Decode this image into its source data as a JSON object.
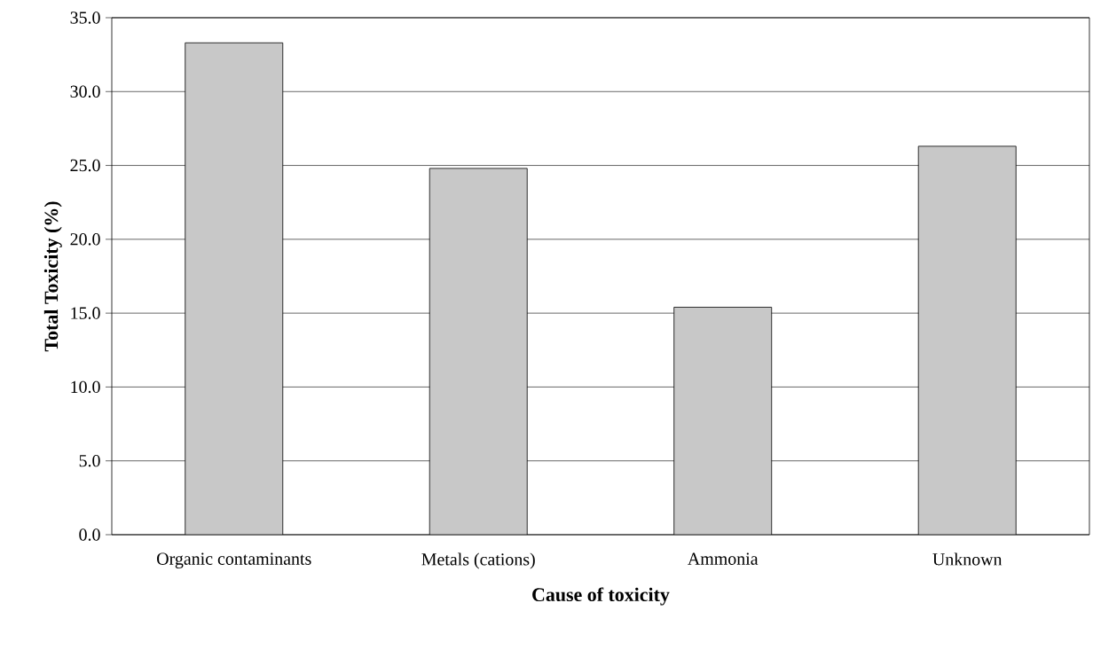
{
  "chart_data": {
    "type": "bar",
    "xlabel": "Cause of toxicity",
    "ylabel": "Total Toxicity (%)",
    "categories": [
      "Organic contaminants",
      "Metals (cations)",
      "Ammonia",
      "Unknown"
    ],
    "values": [
      33.3,
      24.8,
      15.4,
      26.3
    ],
    "color": "#c8c8c8",
    "ylim": [
      0,
      35
    ],
    "yticks": [
      {
        "value": 0,
        "label": "0.0"
      },
      {
        "value": 5,
        "label": "5.0"
      },
      {
        "value": 10,
        "label": "10.0"
      },
      {
        "value": 15,
        "label": "15.0"
      },
      {
        "value": 20,
        "label": "20.0"
      },
      {
        "value": 25,
        "label": "25.0"
      },
      {
        "value": 30,
        "label": "30.0"
      },
      {
        "value": 35,
        "label": "35.0"
      }
    ],
    "grid": "y"
  }
}
